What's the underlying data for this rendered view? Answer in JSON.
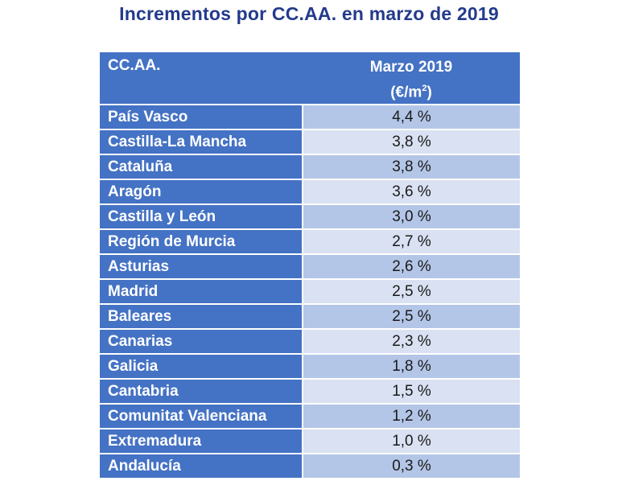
{
  "title": "Incrementos por CC.AA. en marzo de 2019",
  "header": {
    "col1": "CC.AA.",
    "col2_line1": "Marzo 2019",
    "col2_unit": "(€/m",
    "col2_sup": "2",
    "col2_close": ")"
  },
  "chart_data": {
    "type": "table",
    "title": "Incrementos por CC.AA. en marzo de 2019",
    "columns": [
      "CC.AA.",
      "Marzo 2019 (€/m2)"
    ],
    "rows": [
      {
        "region": "País Vasco",
        "value": "4,4 %"
      },
      {
        "region": "Castilla-La Mancha",
        "value": "3,8 %"
      },
      {
        "region": "Cataluña",
        "value": "3,8 %"
      },
      {
        "region": "Aragón",
        "value": "3,6 %"
      },
      {
        "region": "Castilla y León",
        "value": "3,0 %"
      },
      {
        "region": "Región de Murcia",
        "value": "2,7 %"
      },
      {
        "region": "Asturias",
        "value": "2,6 %"
      },
      {
        "region": "Madrid",
        "value": "2,5 %"
      },
      {
        "region": "Baleares",
        "value": "2,5 %"
      },
      {
        "region": "Canarias",
        "value": "2,3 %"
      },
      {
        "region": "Galicia",
        "value": "1,8 %"
      },
      {
        "region": "Cantabria",
        "value": "1,5 %"
      },
      {
        "region": "Comunitat Valenciana",
        "value": "1,2 %"
      },
      {
        "region": "Extremadura",
        "value": "1,0 %"
      },
      {
        "region": "Andalucía",
        "value": "0,3 %"
      }
    ]
  },
  "colors": {
    "title": "#233a8c",
    "header_bg": "#4472c4",
    "row_odd": "#b4c6e7",
    "row_even": "#d9e1f2"
  }
}
